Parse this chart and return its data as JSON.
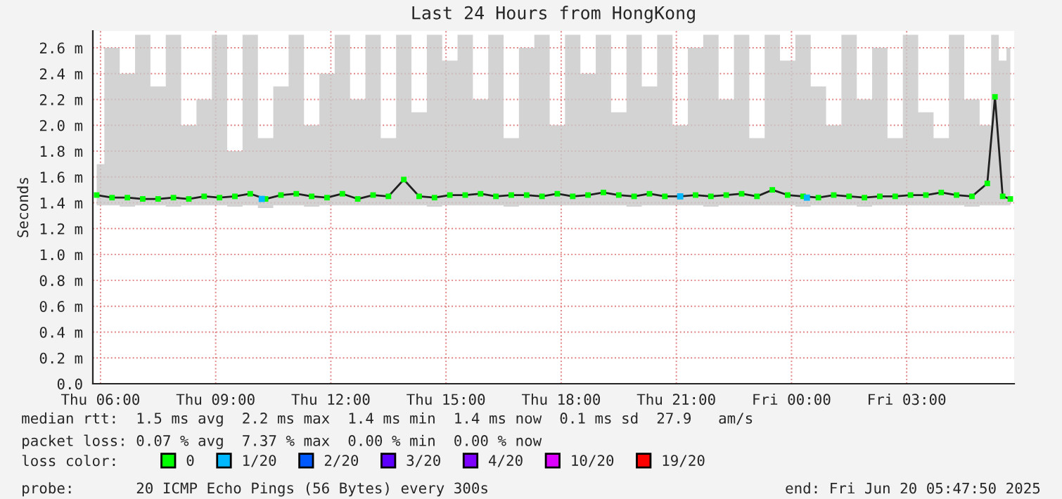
{
  "chart_data": {
    "type": "line",
    "title": "Last 24 Hours from HongKong",
    "ylabel": "Seconds",
    "legend_title": "loss color:",
    "xlim": [
      "2025-06-19T05:48",
      "2025-06-20T05:48"
    ],
    "ylim": [
      0,
      2.73
    ],
    "xticks": [
      {
        "value": "2025-06-19T06:00",
        "label": "Thu 06:00"
      },
      {
        "value": "2025-06-19T09:00",
        "label": "Thu 09:00"
      },
      {
        "value": "2025-06-19T12:00",
        "label": "Thu 12:00"
      },
      {
        "value": "2025-06-19T15:00",
        "label": "Thu 15:00"
      },
      {
        "value": "2025-06-19T18:00",
        "label": "Thu 18:00"
      },
      {
        "value": "2025-06-19T21:00",
        "label": "Thu 21:00"
      },
      {
        "value": "2025-06-20T00:00",
        "label": "Fri 00:00"
      },
      {
        "value": "2025-06-20T03:00",
        "label": "Fri 03:00"
      }
    ],
    "yticks": [
      {
        "value": 0,
        "label": "0.0"
      },
      {
        "value": 0.2,
        "label": "0.2 m"
      },
      {
        "value": 0.4,
        "label": "0.4 m"
      },
      {
        "value": 0.6,
        "label": "0.6 m"
      },
      {
        "value": 0.8,
        "label": "0.8 m"
      },
      {
        "value": 1.0,
        "label": "1.0 m"
      },
      {
        "value": 1.2,
        "label": "1.2 m"
      },
      {
        "value": 1.4,
        "label": "1.4 m"
      },
      {
        "value": 1.6,
        "label": "1.6 m"
      },
      {
        "value": 1.8,
        "label": "1.8 m"
      },
      {
        "value": 2.0,
        "label": "2.0 m"
      },
      {
        "value": 2.2,
        "label": "2.2 m"
      },
      {
        "value": 2.4,
        "label": "2.4 m"
      },
      {
        "value": 2.6,
        "label": "2.6 m"
      }
    ],
    "grid": true,
    "legend": "bottom",
    "series": [
      {
        "name": "0",
        "color": "#00ff00",
        "marker": "square",
        "x": [
          "2025-06-19T05:54",
          "2025-06-19T06:18",
          "2025-06-19T06:42",
          "2025-06-19T07:06",
          "2025-06-19T07:30",
          "2025-06-19T07:54",
          "2025-06-19T08:18",
          "2025-06-19T08:42",
          "2025-06-19T09:06",
          "2025-06-19T09:30",
          "2025-06-19T09:54",
          "2025-06-19T10:18",
          "2025-06-19T10:42",
          "2025-06-19T11:06",
          "2025-06-19T11:30",
          "2025-06-19T11:54",
          "2025-06-19T12:18",
          "2025-06-19T12:42",
          "2025-06-19T13:06",
          "2025-06-19T13:30",
          "2025-06-19T13:54",
          "2025-06-19T14:18",
          "2025-06-19T14:42",
          "2025-06-19T15:06",
          "2025-06-19T15:30",
          "2025-06-19T15:54",
          "2025-06-19T16:18",
          "2025-06-19T16:42",
          "2025-06-19T17:06",
          "2025-06-19T17:30",
          "2025-06-19T17:54",
          "2025-06-19T18:18",
          "2025-06-19T18:42",
          "2025-06-19T19:06",
          "2025-06-19T19:30",
          "2025-06-19T19:54",
          "2025-06-19T20:18",
          "2025-06-19T20:42",
          "2025-06-19T21:06",
          "2025-06-19T21:30",
          "2025-06-19T21:54",
          "2025-06-19T22:18",
          "2025-06-19T22:42",
          "2025-06-19T23:06",
          "2025-06-19T23:30",
          "2025-06-19T23:54",
          "2025-06-20T00:18",
          "2025-06-20T00:42",
          "2025-06-20T01:06",
          "2025-06-20T01:30",
          "2025-06-20T01:54",
          "2025-06-20T02:18",
          "2025-06-20T02:42",
          "2025-06-20T03:06",
          "2025-06-20T03:30",
          "2025-06-20T03:54",
          "2025-06-20T04:18",
          "2025-06-20T04:42",
          "2025-06-20T05:06",
          "2025-06-20T05:18",
          "2025-06-20T05:30",
          "2025-06-20T05:42"
        ],
        "values": [
          1.46,
          1.44,
          1.44,
          1.43,
          1.43,
          1.44,
          1.43,
          1.45,
          1.44,
          1.45,
          1.47,
          1.43,
          1.46,
          1.47,
          1.45,
          1.44,
          1.47,
          1.43,
          1.46,
          1.45,
          1.58,
          1.45,
          1.44,
          1.46,
          1.46,
          1.47,
          1.45,
          1.46,
          1.46,
          1.45,
          1.47,
          1.45,
          1.46,
          1.48,
          1.46,
          1.45,
          1.47,
          1.45,
          1.45,
          1.46,
          1.45,
          1.46,
          1.47,
          1.45,
          1.5,
          1.46,
          1.45,
          1.44,
          1.46,
          1.45,
          1.44,
          1.45,
          1.45,
          1.46,
          1.46,
          1.48,
          1.46,
          1.45,
          1.55,
          2.22,
          1.45,
          1.43
        ],
        "upper": [
          1.7,
          2.6,
          2.4,
          2.7,
          2.3,
          2.7,
          2.0,
          2.2,
          2.7,
          1.8,
          2.7,
          1.9,
          2.3,
          2.7,
          2.0,
          2.4,
          2.7,
          2.2,
          2.7,
          1.9,
          2.7,
          2.1,
          2.7,
          2.5,
          2.7,
          2.2,
          2.7,
          1.9,
          2.6,
          2.7,
          2.0,
          2.7,
          2.4,
          2.7,
          2.1,
          2.7,
          2.3,
          2.7,
          2.0,
          2.6,
          2.7,
          2.2,
          2.7,
          1.9,
          2.7,
          2.5,
          2.7,
          2.3,
          2.0,
          2.7,
          2.2,
          2.6,
          1.9,
          2.7,
          2.1,
          1.9,
          2.7,
          2.2,
          2.0,
          2.7,
          2.5,
          2.6
        ],
        "lower": [
          1.38,
          1.38,
          1.37,
          1.38,
          1.38,
          1.37,
          1.38,
          1.38,
          1.38,
          1.37,
          1.38,
          1.36,
          1.38,
          1.38,
          1.37,
          1.38,
          1.38,
          1.38,
          1.38,
          1.38,
          1.38,
          1.38,
          1.37,
          1.38,
          1.38,
          1.38,
          1.38,
          1.37,
          1.38,
          1.38,
          1.38,
          1.38,
          1.38,
          1.38,
          1.38,
          1.37,
          1.38,
          1.38,
          1.38,
          1.38,
          1.37,
          1.38,
          1.38,
          1.38,
          1.38,
          1.38,
          1.37,
          1.38,
          1.38,
          1.38,
          1.37,
          1.38,
          1.38,
          1.38,
          1.38,
          1.38,
          1.38,
          1.37,
          1.38,
          1.38,
          1.38,
          1.38
        ]
      },
      {
        "name": "1/20",
        "color": "#00b8ff",
        "type": "scatter",
        "x": [
          "2025-06-19T10:12",
          "2025-06-19T21:06",
          "2025-06-20T00:24"
        ],
        "values": [
          1.43,
          1.45,
          1.44
        ]
      },
      {
        "name": "2/20",
        "color": "#0059ff",
        "type": "scatter"
      },
      {
        "name": "3/20",
        "color": "#5e00ff",
        "type": "scatter"
      },
      {
        "name": "4/20",
        "color": "#7e00ff",
        "type": "scatter"
      },
      {
        "name": "10/20",
        "color": "#dd00ff",
        "type": "scatter"
      },
      {
        "name": "19/20",
        "color": "#ff0000",
        "type": "scatter"
      }
    ],
    "annotations": [
      "median rtt:  1.5 ms avg  2.2 ms max  1.4 ms min  1.4 ms now  0.1 ms sd  27.9   am/s",
      "packet loss: 0.07 % avg  7.37 % max  0.00 % min  0.00 % now",
      "probe:       20 ICMP Echo Pings (56 Bytes) every 300s",
      "end: Fri Jun 20 05:47:50 2025"
    ]
  }
}
